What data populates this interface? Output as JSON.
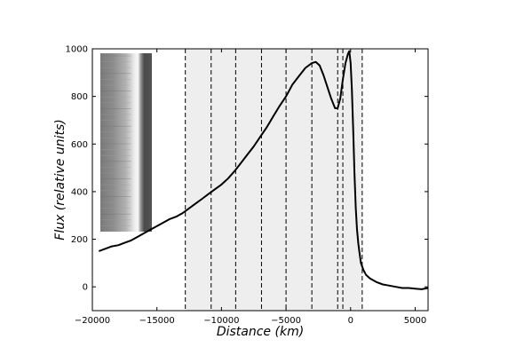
{
  "chart_data": {
    "type": "line",
    "xlabel": "Distance (km)",
    "ylabel": "Flux (relative units)",
    "xlim": [
      -20000,
      6000
    ],
    "ylim": [
      -100,
      1000
    ],
    "x_ticks": [
      -20000,
      -15000,
      -10000,
      -5000,
      0,
      5000
    ],
    "x_tick_labels": [
      "−20000",
      "−15000",
      "−10000",
      "−5000",
      "0",
      "5000"
    ],
    "y_ticks": [
      0,
      200,
      400,
      600,
      800,
      1000
    ],
    "y_tick_labels": [
      "0",
      "200",
      "400",
      "600",
      "800",
      "1000"
    ],
    "grid": false,
    "legend": "none",
    "shaded_region": {
      "x_start": -12800,
      "x_end": 900,
      "color": "#eeeeee"
    },
    "vertical_dashed_lines": [
      -12800,
      -10800,
      -8900,
      -6900,
      -5000,
      -3000,
      -1000,
      -600,
      900
    ],
    "inset_image": "grayscale-spectrogram-strip",
    "series": [
      {
        "color": "#000000",
        "x": [
          -19500,
          -19000,
          -18500,
          -18000,
          -17500,
          -17000,
          -16500,
          -16000,
          -15500,
          -15000,
          -14500,
          -14000,
          -13500,
          -13000,
          -12500,
          -12000,
          -11500,
          -11000,
          -10500,
          -10000,
          -9500,
          -9000,
          -8500,
          -8000,
          -7500,
          -7000,
          -6500,
          -6000,
          -5500,
          -5000,
          -4500,
          -4000,
          -3500,
          -3000,
          -2700,
          -2400,
          -2100,
          -1800,
          -1500,
          -1200,
          -1000,
          -800,
          -600,
          -400,
          -200,
          -100,
          0,
          100,
          200,
          300,
          400,
          500,
          600,
          700,
          800,
          1000,
          1200,
          1500,
          2000,
          2500,
          3000,
          3500,
          4000,
          4500,
          5000,
          5500,
          6000
        ],
        "y": [
          150,
          160,
          170,
          175,
          185,
          195,
          210,
          225,
          240,
          255,
          270,
          285,
          295,
          310,
          330,
          350,
          370,
          390,
          410,
          430,
          455,
          485,
          520,
          555,
          590,
          630,
          670,
          715,
          760,
          800,
          850,
          885,
          920,
          940,
          945,
          930,
          890,
          840,
          790,
          750,
          750,
          790,
          870,
          940,
          980,
          990,
          940,
          830,
          660,
          480,
          330,
          240,
          180,
          140,
          100,
          70,
          50,
          35,
          20,
          10,
          5,
          0,
          -5,
          -5,
          -8,
          -10,
          -5
        ]
      }
    ]
  }
}
